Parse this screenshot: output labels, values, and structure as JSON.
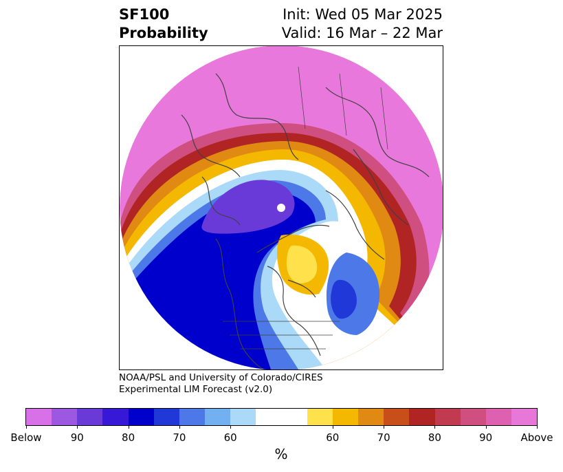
{
  "title": {
    "left_line1": "SF100",
    "left_line2": "Probability",
    "right_line1": "Init: Wed 05 Mar 2025",
    "right_line2": "Valid: 16 Mar – 22 Mar"
  },
  "credit": {
    "line1": "NOAA/PSL and University of Colorado/CIRES",
    "line2": "Experimental LIM Forecast (v2.0)"
  },
  "colorbar": {
    "colors": [
      "#d870e8",
      "#9c58e0",
      "#6a3ad8",
      "#3618d6",
      "#0000cc",
      "#2038d8",
      "#4c78e8",
      "#72b0f2",
      "#aadaf8",
      "#ffffff",
      "#ffffff",
      "#ffe14c",
      "#f4b800",
      "#e08a14",
      "#c84e1a",
      "#b02424",
      "#c23a50",
      "#cf4f80",
      "#de60b0",
      "#e878d8"
    ],
    "tick_labels": [
      "Below",
      "90",
      "80",
      "70",
      "60",
      "60",
      "70",
      "80",
      "90",
      "Above"
    ],
    "unit": "%"
  },
  "map": {
    "projection": "polar-stereographic",
    "palette": {
      "magenta": "#e878dc",
      "pink_red": "#cf4f80",
      "red": "#b02424",
      "orange": "#e08a14",
      "gold": "#f4b800",
      "yellow": "#ffe14c",
      "light_blue": "#aadaf8",
      "mid_blue": "#4c78e8",
      "dark_blue": "#0000cc",
      "purple": "#6a3ad8",
      "violet": "#9c58e0",
      "coastline": "#404040"
    }
  }
}
